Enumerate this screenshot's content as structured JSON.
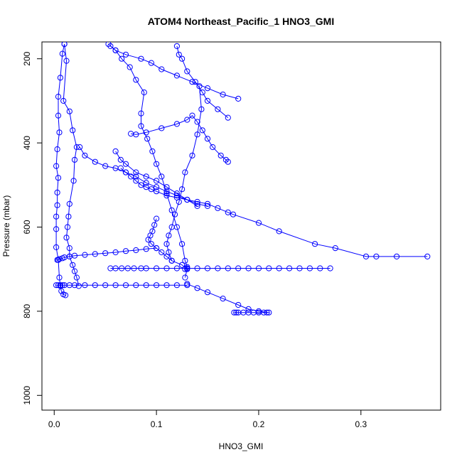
{
  "chart_data": {
    "type": "scatter",
    "title": "ATOM4 Northeast_Pacific_1 HNO3_GMI",
    "xlabel": "HNO3_GMI",
    "ylabel": "Pressure (mbar)",
    "xlim": [
      -0.012,
      0.378
    ],
    "ylim": [
      1035,
      160
    ],
    "y_reversed": true,
    "x_ticks": [
      "0.0",
      "0.1",
      "0.2",
      "0.3"
    ],
    "y_ticks": [
      "200",
      "400",
      "600",
      "800",
      "1000"
    ],
    "grid": false,
    "legend": "none",
    "colors": {
      "series": "#0000ff",
      "axis": "#000000"
    },
    "series": [
      {
        "marker": "open-circle",
        "connected": true,
        "x": [
          0.01,
          0.008,
          0.006,
          0.004,
          0.004,
          0.005,
          0.003,
          0.002,
          0.004,
          0.003,
          0.003,
          0.002,
          0.002,
          0.002,
          0.004,
          0.005,
          0.006,
          0.007,
          0.009,
          0.011
        ],
        "y": [
          165,
          188,
          245,
          290,
          335,
          375,
          415,
          455,
          483,
          518,
          548,
          575,
          605,
          648,
          678,
          720,
          740,
          752,
          760,
          762
        ]
      },
      {
        "marker": "open-circle",
        "connected": true,
        "x": [
          0.01,
          0.012,
          0.009,
          0.015,
          0.018,
          0.022,
          0.02,
          0.019,
          0.015,
          0.014,
          0.013,
          0.012,
          0.015,
          0.015,
          0.018,
          0.02,
          0.022,
          0.024
        ],
        "y": [
          165,
          205,
          300,
          325,
          370,
          410,
          440,
          490,
          545,
          575,
          600,
          625,
          650,
          670,
          690,
          705,
          720,
          740
        ]
      },
      {
        "marker": "open-circle",
        "connected": true,
        "x": [
          0.053,
          0.06,
          0.066,
          0.074,
          0.08,
          0.088,
          0.085,
          0.085,
          0.091,
          0.096,
          0.1,
          0.105,
          0.11,
          0.115,
          0.12,
          0.125,
          0.128,
          0.13,
          0.128
        ],
        "y": [
          165,
          180,
          200,
          220,
          250,
          280,
          330,
          360,
          390,
          420,
          450,
          480,
          520,
          560,
          600,
          640,
          680,
          695,
          700
        ]
      },
      {
        "marker": "open-circle",
        "connected": true,
        "x": [
          0.142,
          0.144,
          0.14,
          0.135,
          0.128,
          0.125,
          0.122,
          0.118,
          0.115,
          0.112,
          0.11,
          0.112,
          0.115,
          0.125,
          0.13,
          0.128
        ],
        "y": [
          265,
          320,
          380,
          430,
          470,
          510,
          540,
          570,
          600,
          620,
          640,
          660,
          680,
          690,
          700,
          720
        ]
      },
      {
        "marker": "open-circle",
        "connected": true,
        "x": [
          0.065,
          0.07,
          0.075,
          0.08,
          0.085,
          0.09,
          0.095,
          0.1,
          0.11,
          0.12,
          0.13,
          0.14,
          0.15,
          0.16,
          0.17,
          0.175,
          0.2,
          0.22,
          0.255,
          0.275,
          0.305,
          0.315,
          0.335,
          0.365
        ],
        "y": [
          460,
          470,
          480,
          490,
          500,
          505,
          510,
          515,
          525,
          530,
          535,
          540,
          545,
          555,
          565,
          570,
          590,
          610,
          640,
          650,
          670,
          670,
          670,
          670
        ]
      },
      {
        "marker": "open-circle",
        "connected": true,
        "x": [
          0.003,
          0.005,
          0.008,
          0.01,
          0.015,
          0.02,
          0.03,
          0.04,
          0.05,
          0.06,
          0.07,
          0.08,
          0.09,
          0.1
        ],
        "y": [
          678,
          676,
          674,
          672,
          670,
          668,
          666,
          664,
          662,
          660,
          657,
          655,
          652,
          650
        ]
      },
      {
        "marker": "open-circle",
        "connected": true,
        "x": [
          0.055,
          0.06,
          0.066,
          0.072,
          0.078,
          0.085,
          0.09,
          0.1,
          0.11,
          0.12,
          0.13,
          0.14,
          0.15,
          0.16,
          0.17,
          0.18,
          0.19,
          0.2,
          0.21,
          0.22,
          0.23,
          0.24,
          0.25,
          0.26,
          0.27
        ],
        "y": [
          698,
          698,
          698,
          698,
          698,
          698,
          698,
          698,
          698,
          698,
          698,
          698,
          698,
          698,
          698,
          698,
          698,
          698,
          698,
          698,
          698,
          698,
          698,
          698,
          698
        ]
      },
      {
        "marker": "open-circle",
        "connected": true,
        "x": [
          0.002,
          0.004,
          0.006,
          0.008,
          0.01,
          0.015,
          0.02,
          0.03,
          0.04,
          0.05,
          0.06,
          0.07,
          0.08,
          0.09,
          0.1,
          0.11,
          0.12,
          0.13
        ],
        "y": [
          738,
          738,
          738,
          738,
          738,
          738,
          738,
          738,
          738,
          738,
          738,
          738,
          738,
          738,
          738,
          738,
          738,
          738
        ]
      },
      {
        "marker": "open-circle",
        "connected": true,
        "x": [
          0.13,
          0.14,
          0.15,
          0.165,
          0.18,
          0.19,
          0.2,
          0.21,
          0.208,
          0.205,
          0.2,
          0.195,
          0.19,
          0.185,
          0.18,
          0.178,
          0.176
        ],
        "y": [
          735,
          745,
          755,
          770,
          785,
          795,
          800,
          803,
          803,
          803,
          803,
          803,
          803,
          803,
          803,
          803,
          803
        ]
      },
      {
        "marker": "open-circle",
        "connected": true,
        "x": [
          0.18,
          0.165,
          0.15,
          0.135,
          0.12,
          0.105,
          0.095,
          0.085,
          0.07,
          0.06,
          0.055
        ],
        "y": [
          295,
          285,
          270,
          255,
          240,
          225,
          210,
          200,
          190,
          180,
          170
        ]
      },
      {
        "marker": "open-circle",
        "connected": true,
        "x": [
          0.17,
          0.168,
          0.163,
          0.155,
          0.15,
          0.145,
          0.14,
          0.135,
          0.13,
          0.12,
          0.105,
          0.09,
          0.08,
          0.075
        ],
        "y": [
          445,
          440,
          430,
          410,
          390,
          370,
          350,
          335,
          345,
          355,
          365,
          375,
          380,
          378
        ]
      },
      {
        "marker": "open-circle",
        "connected": true,
        "x": [
          0.025,
          0.03,
          0.04,
          0.05,
          0.06,
          0.07,
          0.08,
          0.09,
          0.1,
          0.11,
          0.12,
          0.13,
          0.14,
          0.15
        ],
        "y": [
          410,
          430,
          445,
          455,
          460,
          470,
          480,
          495,
          505,
          515,
          525,
          535,
          545,
          550
        ]
      },
      {
        "marker": "open-circle",
        "connected": true,
        "x": [
          0.12,
          0.122,
          0.125,
          0.13,
          0.138,
          0.145,
          0.15,
          0.16,
          0.17
        ],
        "y": [
          170,
          190,
          200,
          230,
          255,
          280,
          300,
          320,
          340
        ]
      },
      {
        "marker": "open-circle",
        "connected": true,
        "x": [
          0.06,
          0.065,
          0.07,
          0.08,
          0.09,
          0.1,
          0.11,
          0.12,
          0.13,
          0.14
        ],
        "y": [
          420,
          440,
          450,
          470,
          480,
          490,
          505,
          520,
          535,
          550
        ]
      },
      {
        "marker": "open-circle",
        "connected": true,
        "x": [
          0.1,
          0.098,
          0.096,
          0.094,
          0.092,
          0.095,
          0.1,
          0.105,
          0.11,
          0.115
        ],
        "y": [
          580,
          595,
          610,
          620,
          630,
          640,
          650,
          660,
          670,
          680
        ]
      }
    ]
  }
}
